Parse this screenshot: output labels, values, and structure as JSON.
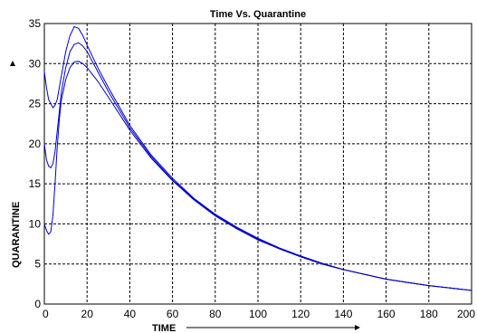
{
  "chart_data": {
    "type": "line",
    "title": "Time Vs. Quarantine",
    "xlabel": "TIME",
    "ylabel": "QUARANTINE",
    "xlim": [
      0,
      200
    ],
    "ylim": [
      0,
      35
    ],
    "xticks": [
      0,
      20,
      40,
      60,
      80,
      100,
      120,
      140,
      160,
      180,
      200
    ],
    "yticks": [
      0,
      5,
      10,
      15,
      20,
      25,
      30,
      35
    ],
    "xtick_labels": [
      "0",
      "20",
      "40",
      "60",
      "80",
      "100",
      "120",
      "140",
      "160",
      "180",
      "200"
    ],
    "ytick_labels": [
      "0",
      "5",
      "10",
      "15",
      "20",
      "25",
      "30",
      "35"
    ],
    "grid": true,
    "line_color": "#0000cc",
    "series": [
      {
        "x": [
          0,
          1,
          2,
          3,
          4,
          5,
          6,
          7,
          8,
          10,
          12,
          14,
          16,
          18,
          20,
          25,
          30,
          40,
          50,
          60,
          70,
          80,
          90,
          100,
          110,
          120,
          130,
          140,
          150,
          160,
          170,
          180,
          190,
          200
        ],
        "values": [
          29.0,
          27.0,
          25.5,
          25.0,
          24.5,
          24.8,
          25.5,
          27.0,
          28.5,
          31.5,
          33.5,
          34.6,
          34.4,
          33.5,
          32.3,
          29.5,
          27.0,
          22.3,
          18.6,
          15.7,
          13.2,
          11.2,
          9.6,
          8.2,
          7.0,
          6.0,
          5.1,
          4.3,
          3.7,
          3.1,
          2.7,
          2.3,
          2.0,
          1.7
        ]
      },
      {
        "x": [
          0,
          1,
          2,
          3,
          4,
          5,
          6,
          7,
          8,
          10,
          12,
          14,
          16,
          18,
          20,
          25,
          30,
          40,
          50,
          60,
          70,
          80,
          90,
          100,
          110,
          120,
          130,
          140,
          150,
          160,
          170,
          180,
          190,
          200
        ],
        "values": [
          20.0,
          18.0,
          17.2,
          17.0,
          17.5,
          19.0,
          21.5,
          24.0,
          26.5,
          29.5,
          31.5,
          32.4,
          32.6,
          32.2,
          31.5,
          29.0,
          26.5,
          22.0,
          18.4,
          15.5,
          13.1,
          11.1,
          9.5,
          8.1,
          6.9,
          5.9,
          5.0,
          4.3,
          3.7,
          3.1,
          2.7,
          2.3,
          2.0,
          1.7
        ]
      },
      {
        "x": [
          0,
          1,
          2,
          3,
          4,
          5,
          6,
          7,
          8,
          10,
          12,
          14,
          16,
          18,
          20,
          25,
          30,
          40,
          50,
          60,
          70,
          80,
          90,
          100,
          110,
          120,
          130,
          140,
          150,
          160,
          170,
          180,
          190,
          200
        ],
        "values": [
          10.0,
          9.2,
          8.7,
          9.0,
          11.0,
          15.0,
          19.5,
          23.0,
          25.5,
          28.0,
          29.5,
          30.2,
          30.3,
          30.0,
          29.5,
          27.8,
          25.8,
          21.7,
          18.2,
          15.4,
          13.0,
          11.0,
          9.4,
          8.0,
          6.9,
          5.9,
          5.0,
          4.3,
          3.7,
          3.1,
          2.7,
          2.3,
          2.0,
          1.7
        ]
      }
    ]
  }
}
